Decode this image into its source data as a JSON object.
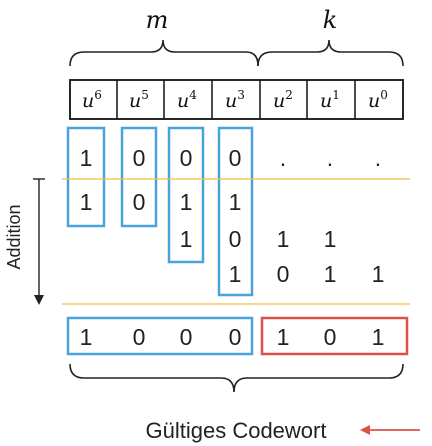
{
  "labels": {
    "m": "m",
    "k": "k",
    "addition": "Addition",
    "codeword": "Gültiges Codewort"
  },
  "header": [
    {
      "base": "u",
      "exp": "6"
    },
    {
      "base": "u",
      "exp": "5"
    },
    {
      "base": "u",
      "exp": "4"
    },
    {
      "base": "u",
      "exp": "3"
    },
    {
      "base": "u",
      "exp": "2"
    },
    {
      "base": "u",
      "exp": "1"
    },
    {
      "base": "u",
      "exp": "0"
    }
  ],
  "rows": [
    [
      "1",
      "0",
      "0",
      "0",
      ".",
      ".",
      "."
    ],
    [
      "1",
      "0",
      "1",
      "1",
      "",
      "",
      ""
    ],
    [
      "",
      "",
      "1",
      "0",
      "1",
      "1",
      ""
    ],
    [
      "",
      "",
      "",
      "1",
      "0",
      "1",
      "1"
    ]
  ],
  "result": [
    "1",
    "0",
    "0",
    "0",
    "1",
    "0",
    "1"
  ],
  "colors": {
    "highlight_blue": "#4aa3d8",
    "highlight_red": "#e0504a",
    "separator": "#f0c040",
    "arrow_red": "#e0504a",
    "text": "#222222"
  }
}
